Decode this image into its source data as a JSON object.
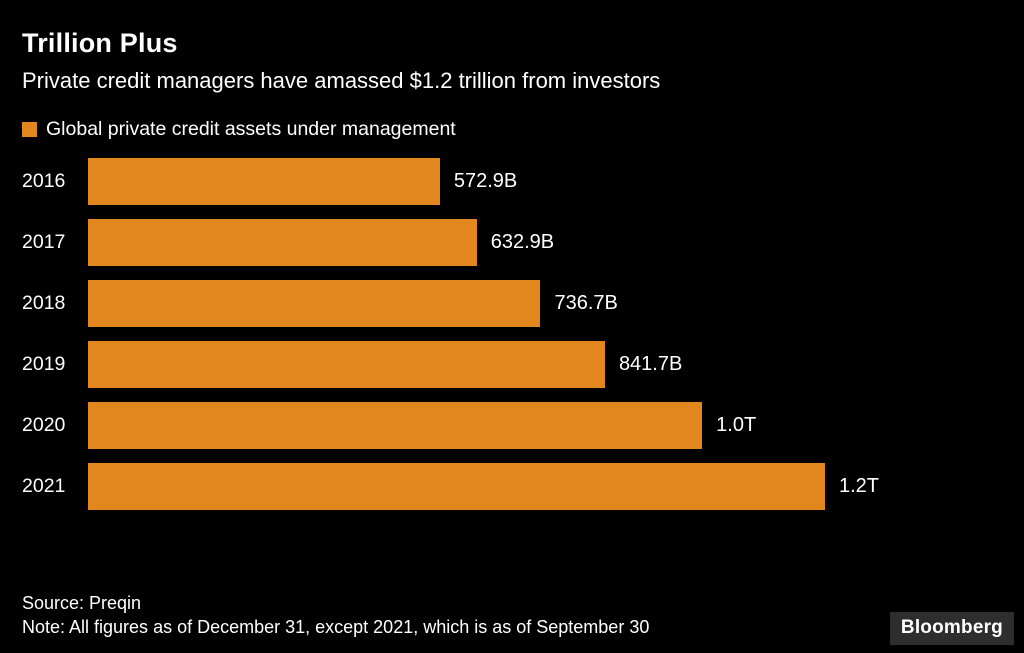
{
  "header": {
    "title": "Trillion Plus",
    "subtitle": "Private credit managers have amassed $1.2 trillion from investors"
  },
  "legend": {
    "label": "Global private credit assets under management",
    "color": "#E2871D"
  },
  "chart_data": {
    "type": "bar",
    "orientation": "horizontal",
    "title": "Trillion Plus",
    "subtitle": "Private credit managers have amassed $1.2 trillion from investors",
    "legend_label": "Global private credit assets under management",
    "categories": [
      "2016",
      "2017",
      "2018",
      "2019",
      "2020",
      "2021"
    ],
    "values": [
      572.9,
      632.9,
      736.7,
      841.7,
      1000,
      1200
    ],
    "value_labels": [
      "572.9B",
      "632.9B",
      "736.7B",
      "841.7B",
      "1.0T",
      "1.2T"
    ],
    "unit": "USD (B = billions, T = trillions)",
    "xlim": [
      0,
      1200
    ],
    "bar_color": "#E2871D",
    "grid": false,
    "legend_position": "top-left"
  },
  "footer": {
    "source": "Source: Preqin",
    "note": "Note: All figures as of December 31, except 2021, which is as of September 30",
    "brand": "Bloomberg"
  }
}
